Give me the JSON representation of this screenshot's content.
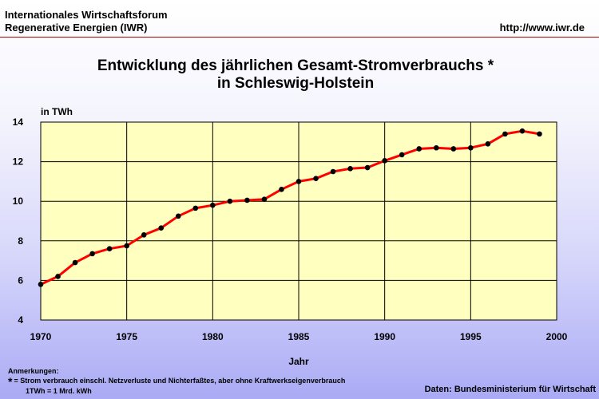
{
  "header": {
    "org_line1": "Internationales Wirtschaftsforum",
    "org_line2": "Regenerative Energien (IWR)",
    "url": "http://www.iwr.de"
  },
  "chart_data": {
    "type": "line",
    "title_line1": "Entwicklung des jährlichen Gesamt-Stromverbrauchs *",
    "title_line2": "in Schleswig-Holstein",
    "xlabel": "Jahr",
    "ylabel": "in TWh",
    "xlim": [
      1970,
      2000
    ],
    "ylim": [
      4,
      14
    ],
    "xticks": [
      1970,
      1975,
      1980,
      1985,
      1990,
      1995,
      2000
    ],
    "yticks": [
      4,
      6,
      8,
      10,
      12,
      14
    ],
    "grid": true,
    "series_color": "#ff0000",
    "marker_color": "#000000",
    "plot_background": "#ffffc0",
    "x": [
      1970,
      1971,
      1972,
      1973,
      1974,
      1975,
      1976,
      1977,
      1978,
      1979,
      1980,
      1981,
      1982,
      1983,
      1984,
      1985,
      1986,
      1987,
      1988,
      1989,
      1990,
      1991,
      1992,
      1993,
      1994,
      1995,
      1996,
      1997,
      1998,
      1999
    ],
    "y": [
      5.8,
      6.2,
      6.9,
      7.35,
      7.6,
      7.75,
      8.3,
      8.65,
      9.25,
      9.65,
      9.8,
      10.0,
      10.05,
      10.1,
      10.6,
      11.0,
      11.15,
      11.5,
      11.65,
      11.7,
      12.05,
      12.35,
      12.65,
      12.7,
      12.65,
      12.7,
      12.9,
      13.4,
      13.55,
      13.4
    ]
  },
  "notes": {
    "heading": "Anmerkungen:",
    "star": "*",
    "line1": "= Strom verbrauch einschl. Netzverluste und Nichterfaßtes, aber ohne Kraftwerkseigenverbrauch",
    "line2": "1TWh = 1 Mrd. kWh"
  },
  "source": "Daten: Bundesministerium für Wirtschaft"
}
